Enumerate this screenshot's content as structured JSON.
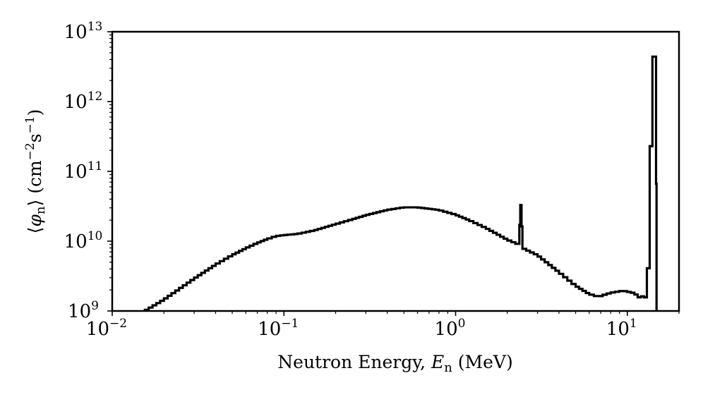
{
  "chart_data": {
    "type": "line",
    "style": "step histogram",
    "x_scale": "log",
    "y_scale": "log",
    "xlim": [
      0.01,
      20
    ],
    "ylim": [
      1000000000.0,
      10000000000000.0
    ],
    "xlabel": {
      "prefix": "Neutron Energy, ",
      "var": "E",
      "sub": "n",
      "unit": " (MeV)"
    },
    "ylabel": {
      "open": "⟨",
      "var": "φ",
      "sub": "n",
      "close": "⟩",
      "unit_open": " (cm",
      "exp1": "−2",
      "mid": "s",
      "exp2": "−1",
      "unit_close": ")"
    },
    "x_ticks": [
      {
        "value": 0.01,
        "base": "10",
        "exp": "−2"
      },
      {
        "value": 0.1,
        "base": "10",
        "exp": "−1"
      },
      {
        "value": 1,
        "base": "10",
        "exp": "0"
      },
      {
        "value": 10,
        "base": "10",
        "exp": "1"
      }
    ],
    "y_ticks": [
      {
        "value": 1000000000.0,
        "base": "10",
        "exp": "9"
      },
      {
        "value": 10000000000.0,
        "base": "10",
        "exp": "10"
      },
      {
        "value": 100000000000.0,
        "base": "10",
        "exp": "11"
      },
      {
        "value": 1000000000000.0,
        "base": "10",
        "exp": "12"
      },
      {
        "value": 10000000000000.0,
        "base": "10",
        "exp": "13"
      }
    ],
    "grid": false,
    "series": [
      {
        "color": "#000000",
        "points": [
          [
            0.0155,
            1000000000.0
          ],
          [
            0.02,
            1450000000.0
          ],
          [
            0.03,
            2900000000.0
          ],
          [
            0.04,
            4600000000.0
          ],
          [
            0.05,
            6300000000.0
          ],
          [
            0.06,
            7900000000.0
          ],
          [
            0.07,
            9400000000.0
          ],
          [
            0.08,
            10700000000.0
          ],
          [
            0.09,
            11800000000.0
          ],
          [
            0.1,
            12200000000.0
          ],
          [
            0.12,
            12700000000.0
          ],
          [
            0.15,
            14200000000.0
          ],
          [
            0.2,
            17500000000.0
          ],
          [
            0.25,
            20500000000.0
          ],
          [
            0.3,
            23500000000.0
          ],
          [
            0.4,
            28000000000.0
          ],
          [
            0.5,
            30500000000.0
          ],
          [
            0.6,
            30500000000.0
          ],
          [
            0.8,
            28000000000.0
          ],
          [
            1.0,
            24000000000.0
          ],
          [
            1.2,
            20000000000.0
          ],
          [
            1.5,
            15500000000.0
          ],
          [
            2.0,
            10500000000.0
          ],
          [
            2.35,
            8900000000.0
          ],
          [
            2.38,
            33000000000.0
          ],
          [
            2.42,
            33000000000.0
          ],
          [
            2.45,
            8000000000.0
          ],
          [
            3.0,
            6300000000.0
          ],
          [
            4.0,
            3600000000.0
          ],
          [
            5.0,
            2300000000.0
          ],
          [
            6.0,
            1750000000.0
          ],
          [
            6.8,
            1600000000.0
          ],
          [
            8.0,
            1820000000.0
          ],
          [
            9.5,
            1950000000.0
          ],
          [
            11.0,
            1800000000.0
          ],
          [
            12.0,
            1500000000.0
          ],
          [
            12.5,
            1750000000.0
          ],
          [
            13.0,
            1400000000.0
          ],
          [
            13.5,
            12000000000.0
          ],
          [
            14.0,
            4400000000000.0
          ],
          [
            14.7,
            4400000000000.0
          ],
          [
            14.8,
            1000000000.0
          ]
        ]
      }
    ]
  }
}
